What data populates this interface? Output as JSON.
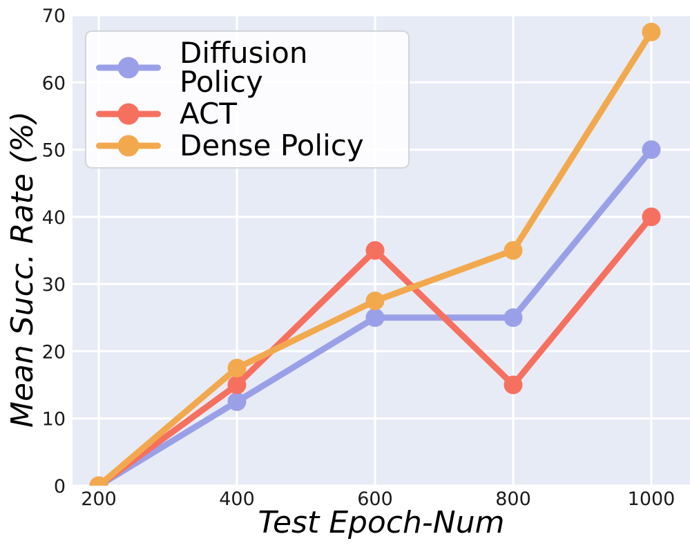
{
  "chart_data": {
    "type": "line",
    "title": "",
    "xlabel": "Test Epoch-Num",
    "ylabel": "Mean Succ. Rate (%)",
    "x": [
      200,
      400,
      600,
      800,
      1000
    ],
    "xticks": [
      "200",
      "400",
      "600",
      "800",
      "1000"
    ],
    "yticks": [
      "0",
      "10",
      "20",
      "30",
      "40",
      "50",
      "60",
      "70"
    ],
    "ytick_values": [
      0,
      10,
      20,
      30,
      40,
      50,
      60,
      70
    ],
    "xlim": [
      162,
      1056
    ],
    "ylim": [
      0,
      70
    ],
    "grid": true,
    "legend_position": "upper left",
    "series": [
      {
        "name": "Diffusion Policy",
        "color": "#9aa0e8",
        "values": [
          0,
          12.5,
          25,
          25,
          50
        ]
      },
      {
        "name": "ACT",
        "color": "#f6705f",
        "values": [
          0,
          15,
          35,
          15,
          40
        ]
      },
      {
        "name": "Dense Policy",
        "color": "#f2a94e",
        "values": [
          0,
          17.5,
          27.5,
          35,
          67.5
        ]
      }
    ],
    "colors": {
      "figure_bg": "#ffffff",
      "plot_bg": "#e7ebf5",
      "grid": "#ffffff",
      "tick_text": "#1a1a1a",
      "label_text": "#000000"
    }
  }
}
